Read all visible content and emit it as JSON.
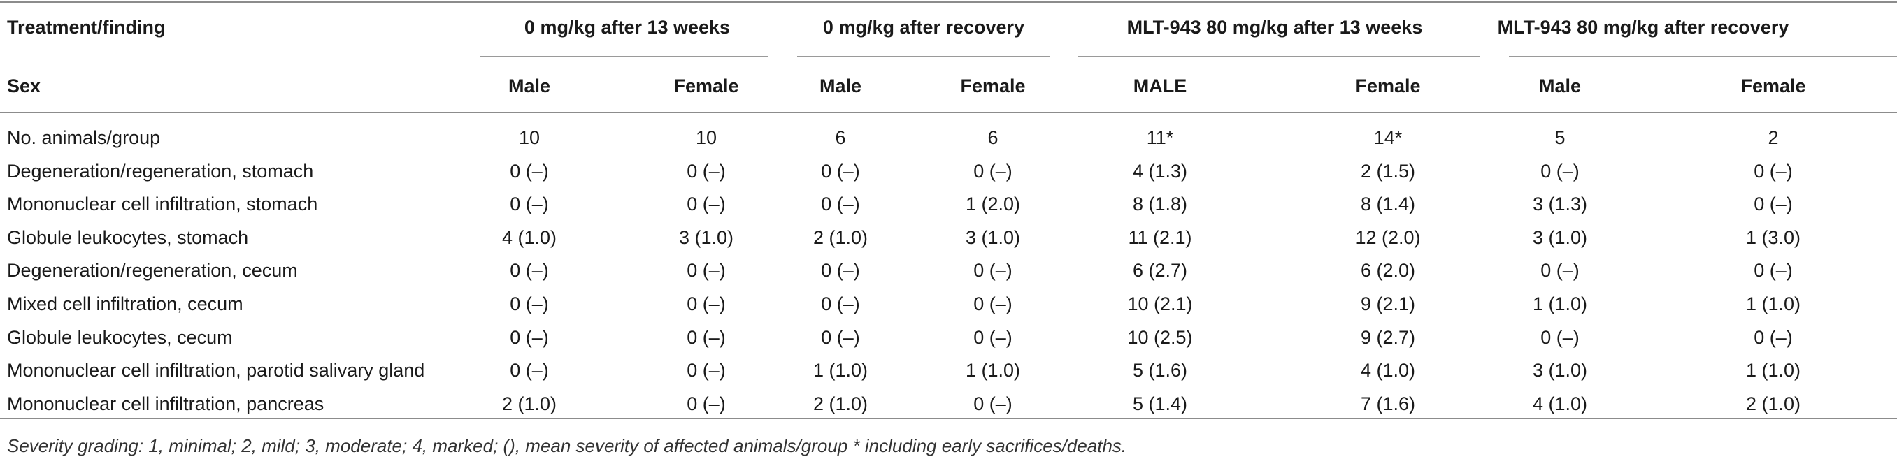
{
  "table": {
    "header_label": "Treatment/finding",
    "groups": [
      "0 mg/kg after 13 weeks",
      "0 mg/kg after recovery",
      "MLT-943 80 mg/kg after 13 weeks",
      "MLT-943 80 mg/kg after recovery"
    ],
    "sex_label": "Sex",
    "sexes": [
      "Male",
      "Female",
      "Male",
      "Female",
      "MALE",
      "Female",
      "Male",
      "Female"
    ],
    "rows": [
      {
        "label": "No. animals/group",
        "values": [
          "10",
          "10",
          "6",
          "6",
          "11*",
          "14*",
          "5",
          "2"
        ]
      },
      {
        "label": "Degeneration/regeneration, stomach",
        "values": [
          "0 (–)",
          "0 (–)",
          "0 (–)",
          "0 (–)",
          "4 (1.3)",
          "2 (1.5)",
          "0 (–)",
          "0 (–)"
        ]
      },
      {
        "label": "Mononuclear cell infiltration, stomach",
        "values": [
          "0 (–)",
          "0 (–)",
          "0 (–)",
          "1 (2.0)",
          "8 (1.8)",
          "8 (1.4)",
          "3 (1.3)",
          "0 (–)"
        ]
      },
      {
        "label": "Globule leukocytes, stomach",
        "values": [
          "4 (1.0)",
          "3 (1.0)",
          "2 (1.0)",
          "3 (1.0)",
          "11 (2.1)",
          "12 (2.0)",
          "3 (1.0)",
          "1 (3.0)"
        ]
      },
      {
        "label": "Degeneration/regeneration, cecum",
        "values": [
          "0 (–)",
          "0 (–)",
          "0 (–)",
          "0 (–)",
          "6 (2.7)",
          "6 (2.0)",
          "0 (–)",
          "0 (–)"
        ]
      },
      {
        "label": "Mixed cell infiltration, cecum",
        "values": [
          "0 (–)",
          "0 (–)",
          "0 (–)",
          "0 (–)",
          "10 (2.1)",
          "9 (2.1)",
          "1 (1.0)",
          "1 (1.0)"
        ]
      },
      {
        "label": "Globule leukocytes, cecum",
        "values": [
          "0 (–)",
          "0 (–)",
          "0 (–)",
          "0 (–)",
          "10 (2.5)",
          "9 (2.7)",
          "0 (–)",
          "0 (–)"
        ]
      },
      {
        "label": "Mononuclear cell infiltration, parotid salivary gland",
        "values": [
          "0 (–)",
          "0 (–)",
          "1 (1.0)",
          "1 (1.0)",
          "5 (1.6)",
          "4 (1.0)",
          "3 (1.0)",
          "1 (1.0)"
        ]
      },
      {
        "label": "Mononuclear cell infiltration, pancreas",
        "values": [
          "2 (1.0)",
          "0 (–)",
          "2 (1.0)",
          "0 (–)",
          "5 (1.4)",
          "7 (1.6)",
          "4 (1.0)",
          "2 (1.0)"
        ]
      }
    ],
    "footnote": "Severity grading: 1, minimal; 2, mild; 3, moderate; 4, marked; (), mean severity of affected animals/group * including early sacrifices/deaths."
  }
}
